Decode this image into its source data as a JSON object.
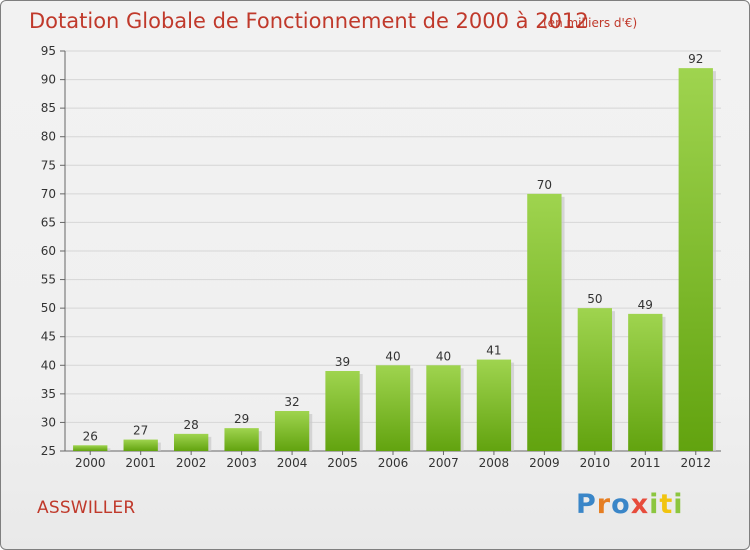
{
  "chart_data": {
    "type": "bar",
    "title": "Dotation Globale de Fonctionnement de 2000 à 2012",
    "subtitle": "(en milliers d'€)",
    "categories": [
      "2000",
      "2001",
      "2002",
      "2003",
      "2004",
      "2005",
      "2006",
      "2007",
      "2008",
      "2009",
      "2010",
      "2011",
      "2012"
    ],
    "values": [
      26,
      27,
      28,
      29,
      32,
      39,
      40,
      40,
      41,
      70,
      50,
      49,
      92
    ],
    "xlabel": "",
    "ylabel": "",
    "ylim": [
      25,
      95
    ],
    "yticks": [
      25,
      30,
      35,
      40,
      45,
      50,
      55,
      60,
      65,
      70,
      75,
      80,
      85,
      90,
      95
    ],
    "grid": true,
    "bar_color": "#7cbd2e"
  },
  "commune": "ASSWILLER",
  "logo": {
    "text": "Proxiti"
  }
}
